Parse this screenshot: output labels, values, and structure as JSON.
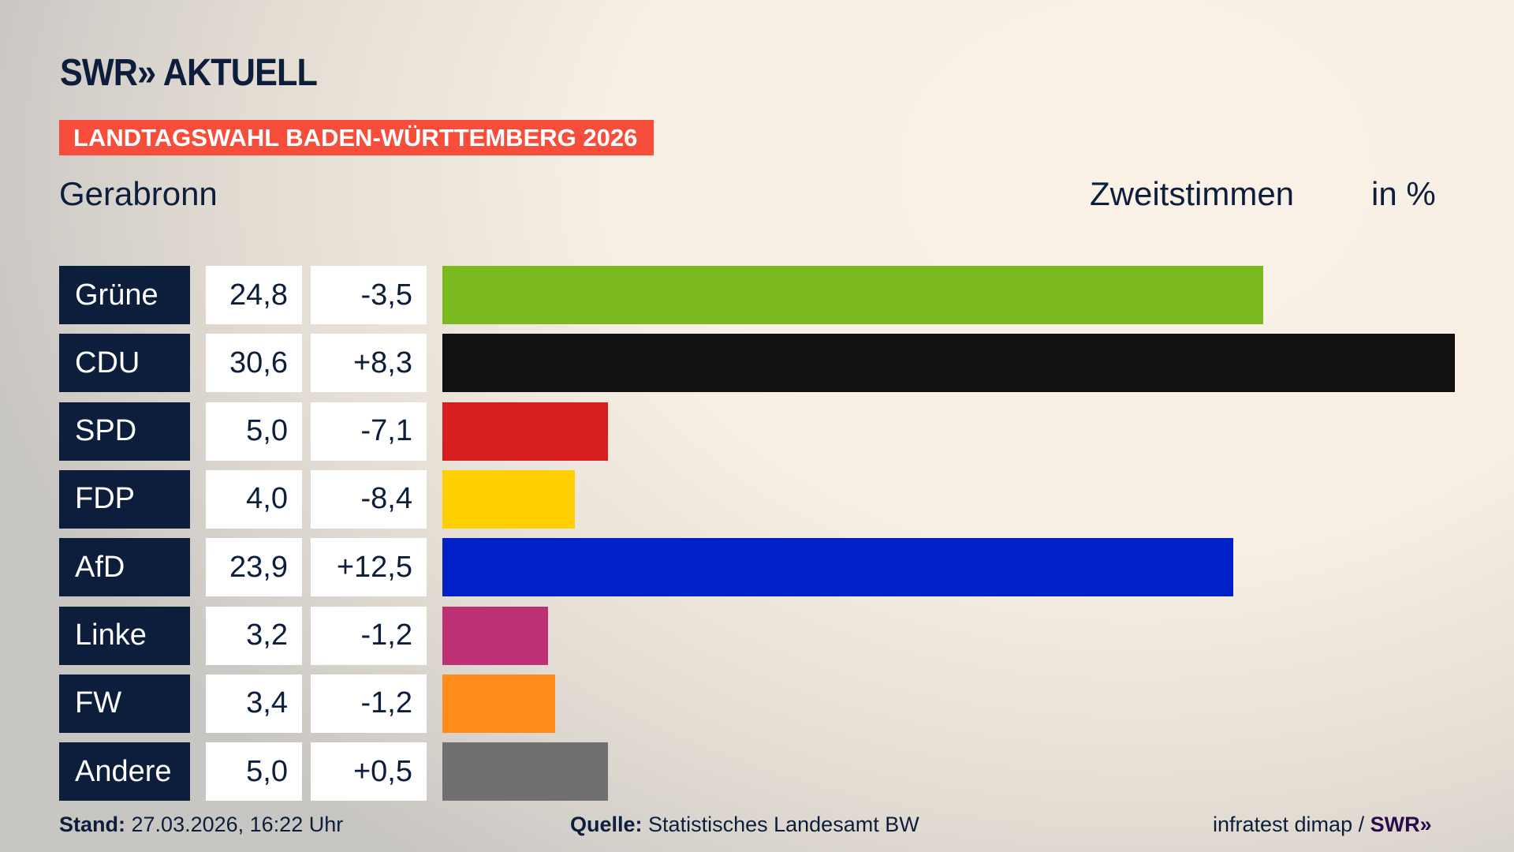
{
  "header": {
    "logo": "SWR» AKTUELL",
    "banner": "LANDTAGSWAHL BADEN-WÜRTTEMBERG 2026",
    "place": "Gerabronn",
    "metric": "Zweitstimmen",
    "unit": "in %"
  },
  "chart_data": {
    "type": "bar",
    "orientation": "horizontal",
    "categories": [
      "Grüne",
      "CDU",
      "SPD",
      "FDP",
      "AfD",
      "Linke",
      "FW",
      "Andere"
    ],
    "values": [
      24.8,
      30.6,
      5.0,
      4.0,
      23.9,
      3.2,
      3.4,
      5.0
    ],
    "value_labels": [
      "24,8",
      "30,6",
      "5,0",
      "4,0",
      "23,9",
      "3,2",
      "3,4",
      "5,0"
    ],
    "changes": [
      "-3,5",
      "+8,3",
      "-7,1",
      "-8,4",
      "+12,5",
      "-1,2",
      "-1,2",
      "+0,5"
    ],
    "colors": [
      "#7aba1e",
      "#111111",
      "#d71f1f",
      "#ffd000",
      "#0021c8",
      "#bd3075",
      "#ff8c1a",
      "#707070"
    ],
    "title": "Zweitstimmen",
    "ylabel": "in %",
    "grid": false
  },
  "footer": {
    "stand_label": "Stand:",
    "stand_value": "27.03.2026, 16:22 Uhr",
    "source_label": "Quelle:",
    "source_value": "Statistisches Landesamt BW",
    "credit": "infratest dimap /",
    "credit_logo": "SWR»"
  }
}
